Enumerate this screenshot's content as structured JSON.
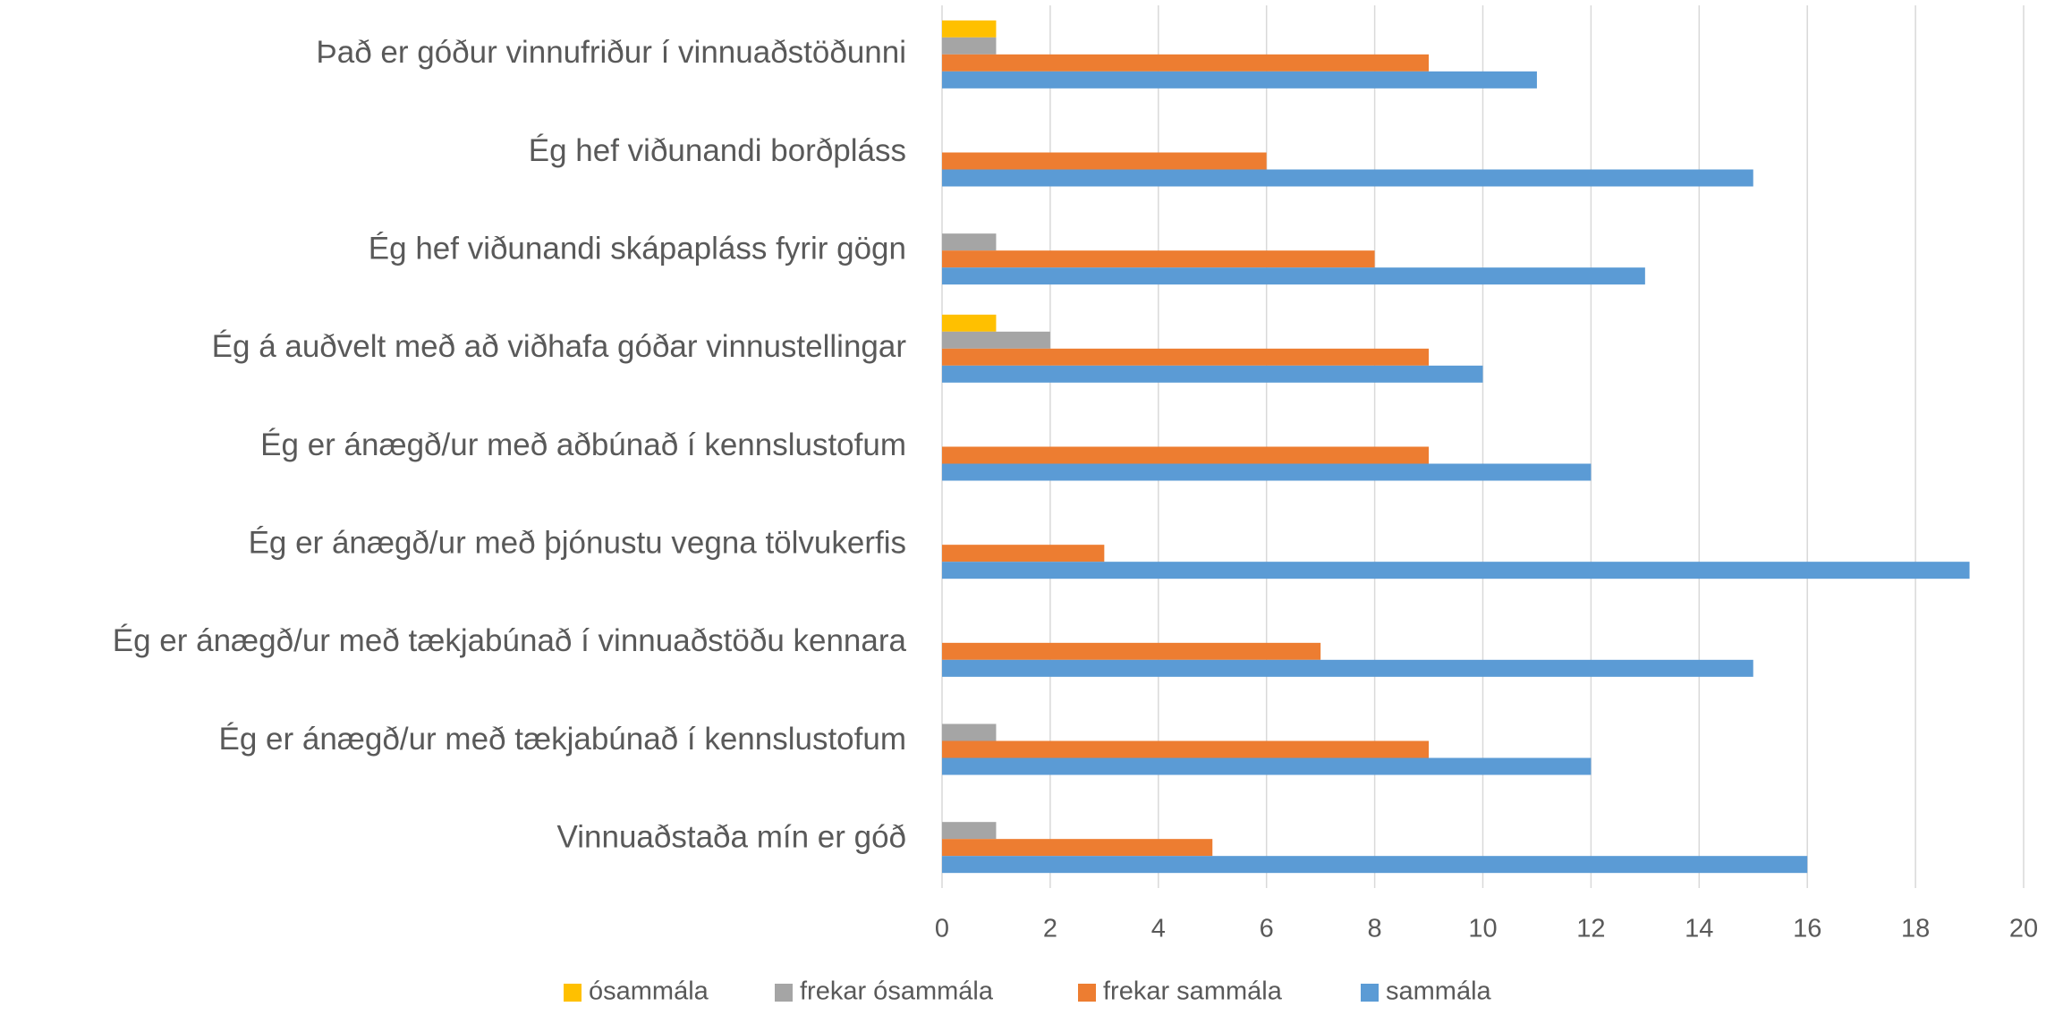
{
  "chart_data": {
    "type": "bar",
    "orientation": "horizontal",
    "categories": [
      "Það er góður vinnufriður í vinnuaðstöðunni",
      "Ég hef viðunandi borðpláss",
      "Ég hef viðunandi skápapláss fyrir gögn",
      "Ég á auðvelt með að viðhafa góðar vinnustellingar",
      "Ég er ánægð/ur með aðbúnað í kennslustofum",
      "Ég er ánægð/ur með þjónustu vegna tölvukerfis",
      "Ég er ánægð/ur með tækjabúnað í vinnuaðstöðu kennara",
      "Ég er ánægð/ur með tækjabúnað í kennslustofum",
      "Vinnuaðstaða mín er góð"
    ],
    "series": [
      {
        "name": "ósammála",
        "color": "#ffc000",
        "values": [
          1,
          0,
          0,
          1,
          0,
          0,
          0,
          0,
          0
        ]
      },
      {
        "name": "frekar ósammála",
        "color": "#a5a5a5",
        "values": [
          1,
          0,
          1,
          2,
          0,
          0,
          0,
          1,
          1
        ]
      },
      {
        "name": "frekar sammála",
        "color": "#ed7d31",
        "values": [
          9,
          6,
          8,
          9,
          9,
          3,
          7,
          9,
          5
        ]
      },
      {
        "name": "sammála",
        "color": "#5b9bd5",
        "values": [
          11,
          15,
          13,
          10,
          12,
          19,
          15,
          12,
          16
        ]
      }
    ],
    "xlim": [
      0,
      20
    ],
    "xticks": [
      0,
      2,
      4,
      6,
      8,
      10,
      12,
      14,
      16,
      18,
      20
    ],
    "grid": true,
    "legend": "bottom"
  }
}
